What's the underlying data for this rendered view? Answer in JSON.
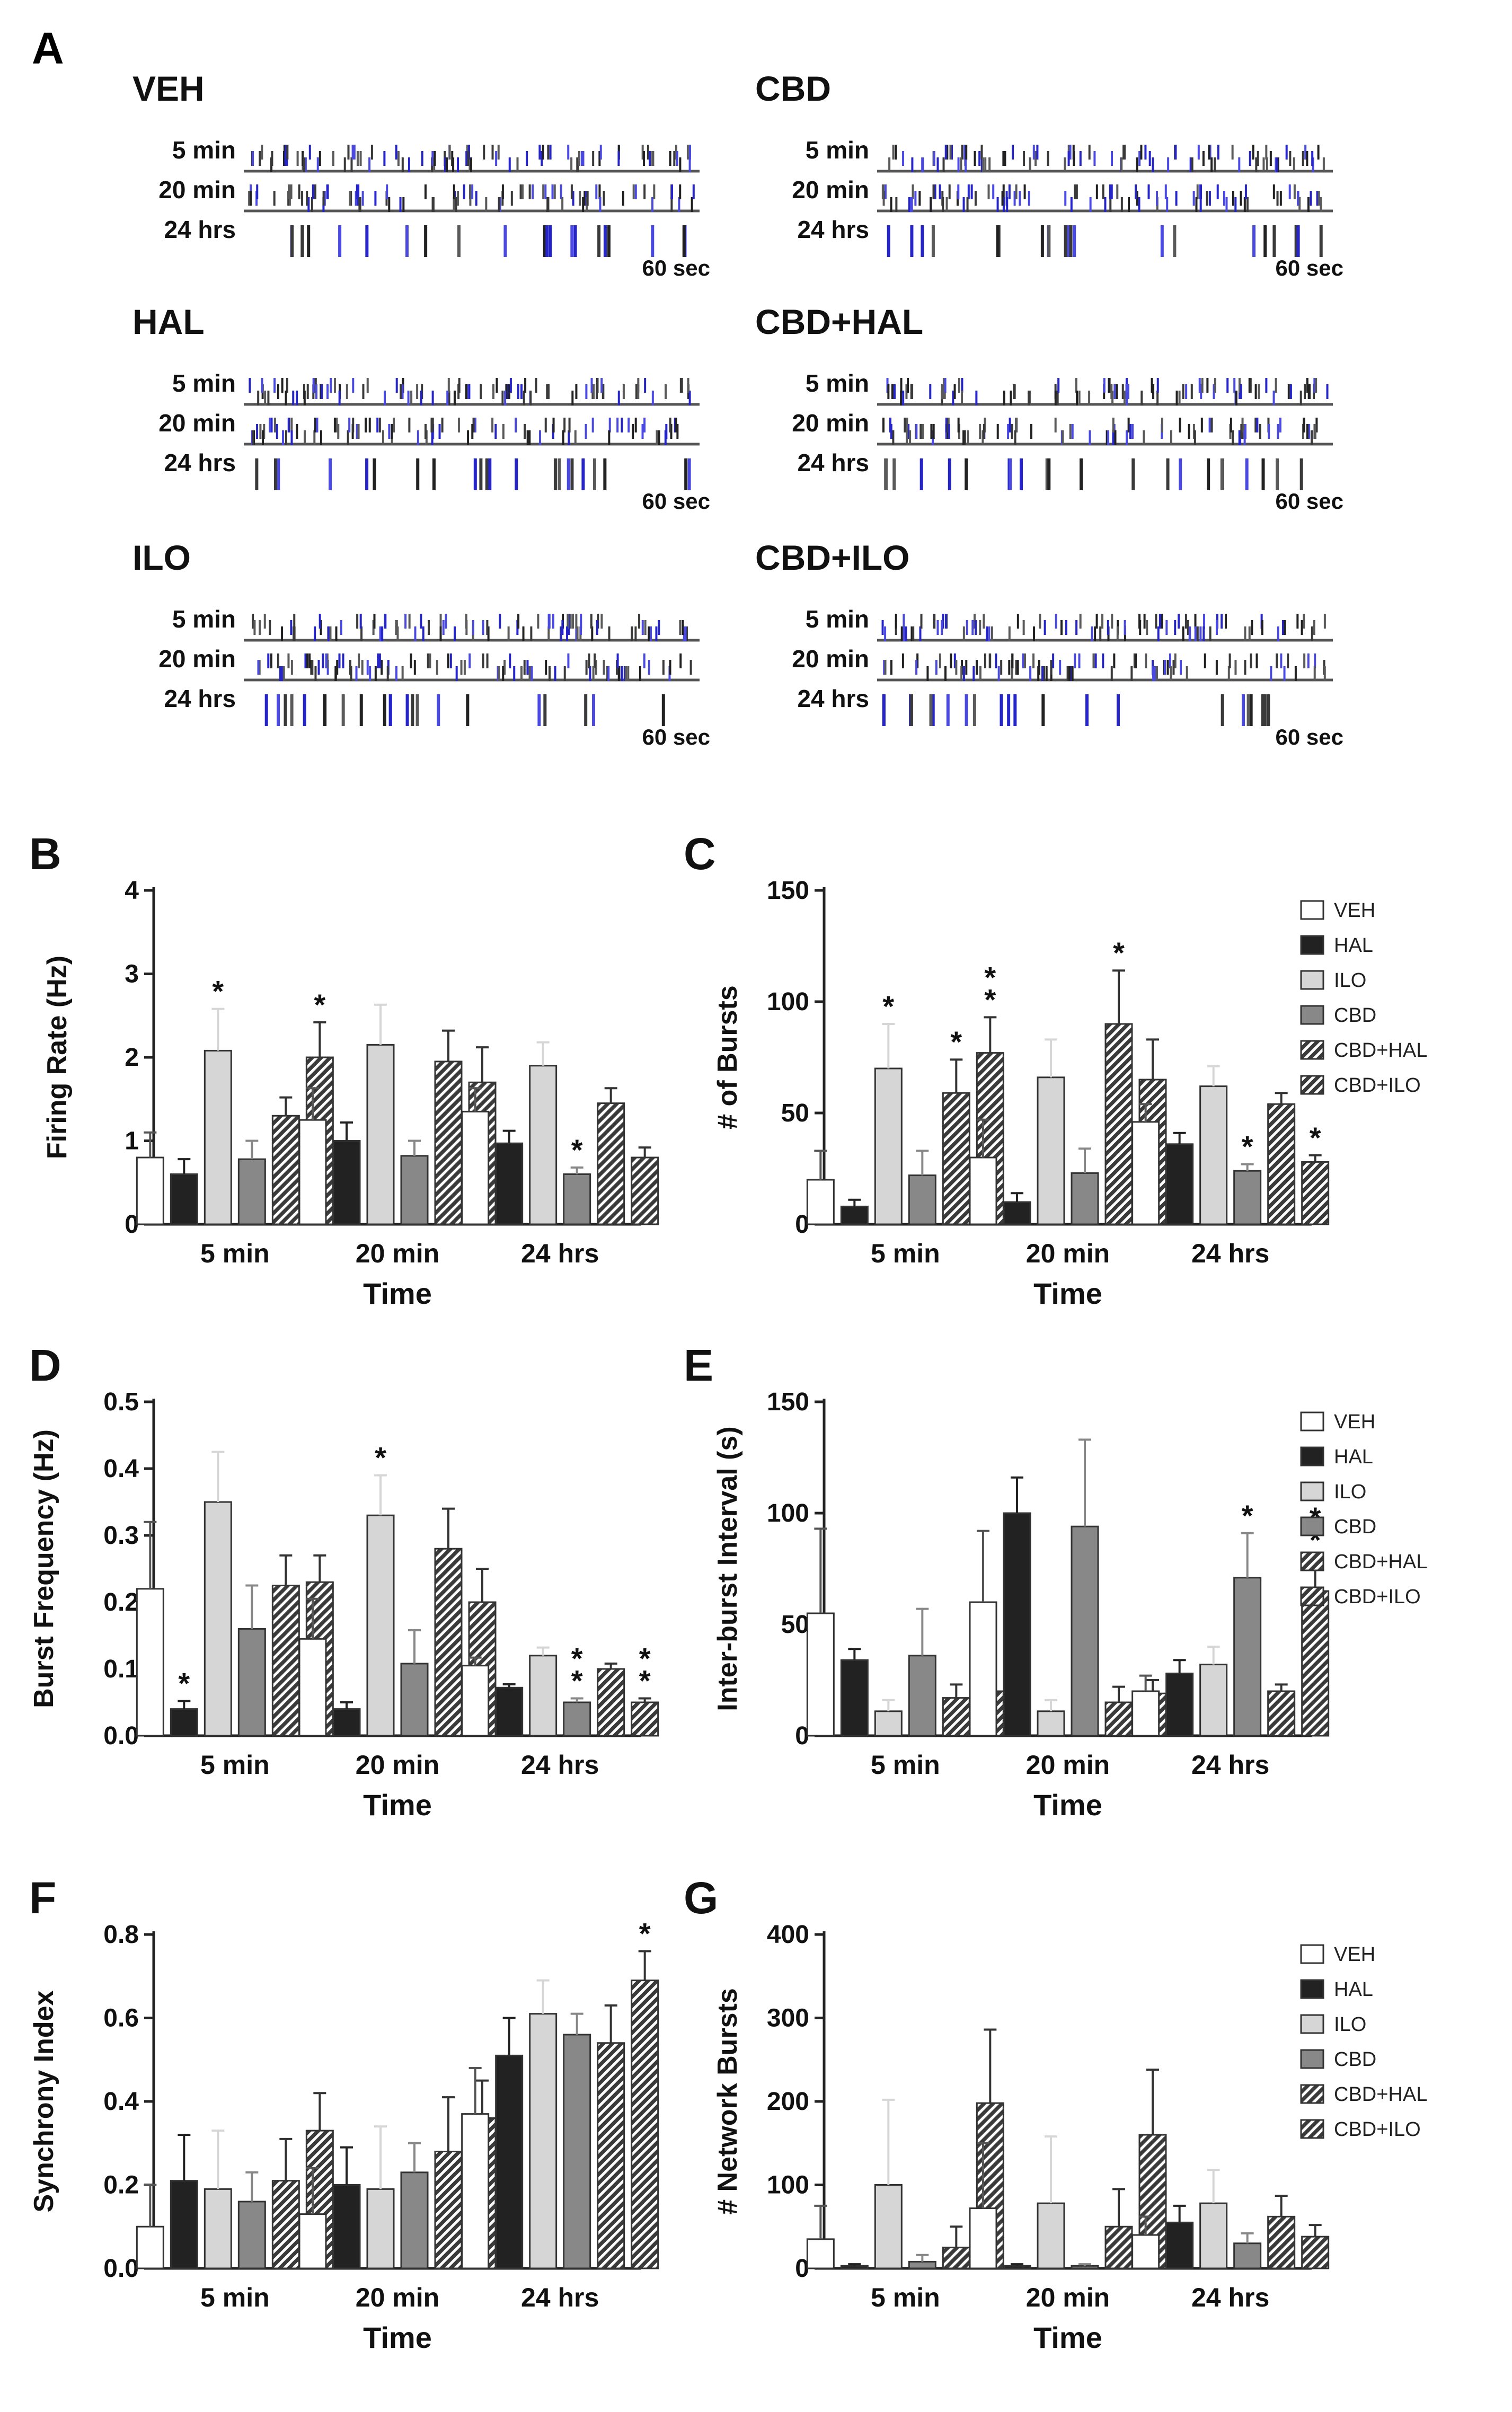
{
  "raster": {
    "panel_label": "A",
    "treatments": [
      {
        "name": "VEH",
        "times": [
          "5 min",
          "20 min",
          "24 hrs"
        ],
        "duration": "60 sec"
      },
      {
        "name": "CBD",
        "times": [
          "5 min",
          "20 min",
          "24 hrs"
        ],
        "duration": "60 sec"
      },
      {
        "name": "HAL",
        "times": [
          "5 min",
          "20 min",
          "24 hrs"
        ],
        "duration": "60 sec"
      },
      {
        "name": "CBD+HAL",
        "times": [
          "5 min",
          "20 min",
          "24 hrs"
        ],
        "duration": "60 sec"
      },
      {
        "name": "ILO",
        "times": [
          "5 min",
          "20 min",
          "24 hrs"
        ],
        "duration": "60 sec"
      },
      {
        "name": "CBD+ILO",
        "times": [
          "5 min",
          "20 min",
          "24 hrs"
        ],
        "duration": "60 sec"
      }
    ]
  },
  "legend": {
    "entries": [
      {
        "name": "VEH",
        "color": "#ffffff",
        "pattern": "none"
      },
      {
        "name": "HAL",
        "color": "#222222",
        "pattern": "none"
      },
      {
        "name": "ILO",
        "color": "#d6d6d6",
        "pattern": "none"
      },
      {
        "name": "CBD",
        "color": "#888888",
        "pattern": "none"
      },
      {
        "name": "CBD+HAL",
        "color": "#444444",
        "pattern": "hatch"
      },
      {
        "name": "CBD+ILO",
        "color": "#444444",
        "pattern": "hatch"
      }
    ]
  },
  "chart_data": [
    {
      "panel": "B",
      "type": "bar",
      "ylabel": "Firing Rate (Hz)",
      "xlabel": "Time",
      "ylim": [
        0,
        4
      ],
      "yticks": [
        "0",
        "1",
        "2",
        "3",
        "4"
      ],
      "categories": [
        "5 min",
        "20 min",
        "24 hrs"
      ],
      "show_legend": false,
      "series": [
        {
          "name": "VEH",
          "values": [
            0.8,
            1.25,
            1.35
          ],
          "errors": [
            0.3,
            0.38,
            0.28
          ]
        },
        {
          "name": "HAL",
          "values": [
            0.6,
            1.0,
            0.97
          ],
          "errors": [
            0.18,
            0.22,
            0.15
          ]
        },
        {
          "name": "ILO",
          "values": [
            2.08,
            2.15,
            1.9
          ],
          "errors": [
            0.5,
            0.48,
            0.28
          ]
        },
        {
          "name": "CBD",
          "values": [
            0.78,
            0.82,
            0.6
          ],
          "errors": [
            0.22,
            0.18,
            0.08
          ]
        },
        {
          "name": "CBD+HAL",
          "values": [
            1.3,
            1.95,
            1.45
          ],
          "errors": [
            0.22,
            0.37,
            0.18
          ]
        },
        {
          "name": "CBD+ILO",
          "values": [
            2.0,
            1.7,
            0.8
          ],
          "errors": [
            0.42,
            0.42,
            0.12
          ]
        }
      ],
      "annotations": [
        {
          "category": "5 min",
          "series": "ILO",
          "text": "*"
        },
        {
          "category": "5 min",
          "series": "CBD+ILO",
          "text": "*"
        },
        {
          "category": "24 hrs",
          "series": "CBD",
          "text": "*"
        }
      ]
    },
    {
      "panel": "C",
      "type": "bar",
      "ylabel": "# of Bursts",
      "xlabel": "Time",
      "ylim": [
        0,
        150
      ],
      "yticks": [
        "0",
        "50",
        "100",
        "150"
      ],
      "categories": [
        "5 min",
        "20 min",
        "24 hrs"
      ],
      "show_legend": true,
      "series": [
        {
          "name": "VEH",
          "values": [
            20,
            30,
            46
          ],
          "errors": [
            13,
            17,
            8
          ]
        },
        {
          "name": "HAL",
          "values": [
            8,
            10,
            36
          ],
          "errors": [
            3,
            4,
            5
          ]
        },
        {
          "name": "ILO",
          "values": [
            70,
            66,
            62
          ],
          "errors": [
            20,
            17,
            9
          ]
        },
        {
          "name": "CBD",
          "values": [
            22,
            23,
            24
          ],
          "errors": [
            11,
            11,
            3
          ]
        },
        {
          "name": "CBD+HAL",
          "values": [
            59,
            90,
            54
          ],
          "errors": [
            15,
            24,
            5
          ]
        },
        {
          "name": "CBD+ILO",
          "values": [
            77,
            65,
            28
          ],
          "errors": [
            16,
            18,
            3
          ]
        }
      ],
      "annotations": [
        {
          "category": "5 min",
          "series": "ILO",
          "text": "*"
        },
        {
          "category": "5 min",
          "series": "CBD+HAL",
          "text": "*"
        },
        {
          "category": "5 min",
          "series": "CBD+ILO",
          "text": "**"
        },
        {
          "category": "20 min",
          "series": "CBD+HAL",
          "text": "*"
        },
        {
          "category": "24 hrs",
          "series": "CBD",
          "text": "*"
        },
        {
          "category": "24 hrs",
          "series": "CBD+ILO",
          "text": "*"
        }
      ]
    },
    {
      "panel": "D",
      "type": "bar",
      "ylabel": "Burst Frequency (Hz)",
      "xlabel": "Time",
      "ylim": [
        0,
        0.5
      ],
      "yticks": [
        "0.0",
        "0.1",
        "0.2",
        "0.3",
        "0.4",
        "0.5"
      ],
      "categories": [
        "5 min",
        "20 min",
        "24 hrs"
      ],
      "show_legend": false,
      "series": [
        {
          "name": "VEH",
          "values": [
            0.22,
            0.145,
            0.105
          ],
          "errors": [
            0.1,
            0.06,
            0.012
          ]
        },
        {
          "name": "HAL",
          "values": [
            0.04,
            0.04,
            0.072
          ],
          "errors": [
            0.012,
            0.01,
            0.005
          ]
        },
        {
          "name": "ILO",
          "values": [
            0.35,
            0.33,
            0.12
          ],
          "errors": [
            0.075,
            0.06,
            0.012
          ]
        },
        {
          "name": "CBD",
          "values": [
            0.16,
            0.108,
            0.05
          ],
          "errors": [
            0.065,
            0.05,
            0.006
          ]
        },
        {
          "name": "CBD+HAL",
          "values": [
            0.225,
            0.28,
            0.1
          ],
          "errors": [
            0.045,
            0.06,
            0.008
          ]
        },
        {
          "name": "CBD+ILO",
          "values": [
            0.23,
            0.2,
            0.05
          ],
          "errors": [
            0.04,
            0.05,
            0.006
          ]
        }
      ],
      "annotations": [
        {
          "category": "5 min",
          "series": "HAL",
          "text": "*"
        },
        {
          "category": "20 min",
          "series": "ILO",
          "text": "*"
        },
        {
          "category": "24 hrs",
          "series": "CBD",
          "text": "**"
        },
        {
          "category": "24 hrs",
          "series": "CBD+ILO",
          "text": "**"
        }
      ]
    },
    {
      "panel": "E",
      "type": "bar",
      "ylabel": "Inter-burst Interval (s)",
      "xlabel": "Time",
      "ylim": [
        0,
        150
      ],
      "yticks": [
        "0",
        "50",
        "100",
        "150"
      ],
      "categories": [
        "5 min",
        "20 min",
        "24 hrs"
      ],
      "show_legend": true,
      "series": [
        {
          "name": "VEH",
          "values": [
            55,
            60,
            20
          ],
          "errors": [
            38,
            32,
            7
          ]
        },
        {
          "name": "HAL",
          "values": [
            34,
            100,
            28
          ],
          "errors": [
            5,
            16,
            6
          ]
        },
        {
          "name": "ILO",
          "values": [
            11,
            11,
            32
          ],
          "errors": [
            5,
            5,
            8
          ]
        },
        {
          "name": "CBD",
          "values": [
            36,
            94,
            71
          ],
          "errors": [
            21,
            39,
            20
          ]
        },
        {
          "name": "CBD+HAL",
          "values": [
            17,
            15,
            20
          ],
          "errors": [
            6,
            7,
            3
          ]
        },
        {
          "name": "CBD+ILO",
          "values": [
            20,
            19,
            65
          ],
          "errors": [
            14,
            6,
            15
          ]
        }
      ],
      "annotations": [
        {
          "category": "24 hrs",
          "series": "CBD",
          "text": "*"
        },
        {
          "category": "24 hrs",
          "series": "CBD+ILO",
          "text": "**"
        }
      ]
    },
    {
      "panel": "F",
      "type": "bar",
      "ylabel": "Synchrony Index",
      "xlabel": "Time",
      "ylim": [
        0,
        0.8
      ],
      "yticks": [
        "0.0",
        "0.2",
        "0.4",
        "0.6",
        "0.8"
      ],
      "categories": [
        "5 min",
        "20 min",
        "24 hrs"
      ],
      "show_legend": false,
      "series": [
        {
          "name": "VEH",
          "values": [
            0.1,
            0.13,
            0.37
          ],
          "errors": [
            0.1,
            0.11,
            0.11
          ]
        },
        {
          "name": "HAL",
          "values": [
            0.21,
            0.2,
            0.51
          ],
          "errors": [
            0.11,
            0.09,
            0.09
          ]
        },
        {
          "name": "ILO",
          "values": [
            0.19,
            0.19,
            0.61
          ],
          "errors": [
            0.14,
            0.15,
            0.08
          ]
        },
        {
          "name": "CBD",
          "values": [
            0.16,
            0.23,
            0.56
          ],
          "errors": [
            0.07,
            0.07,
            0.05
          ]
        },
        {
          "name": "CBD+HAL",
          "values": [
            0.21,
            0.28,
            0.54
          ],
          "errors": [
            0.1,
            0.13,
            0.09
          ]
        },
        {
          "name": "CBD+ILO",
          "values": [
            0.33,
            0.36,
            0.69
          ],
          "errors": [
            0.09,
            0.09,
            0.07
          ]
        }
      ],
      "annotations": [
        {
          "category": "24 hrs",
          "series": "CBD+ILO",
          "text": "*"
        }
      ]
    },
    {
      "panel": "G",
      "type": "bar",
      "ylabel": "# Network Bursts",
      "xlabel": "Time",
      "ylim": [
        0,
        400
      ],
      "yticks": [
        "0",
        "100",
        "200",
        "300",
        "400"
      ],
      "categories": [
        "5 min",
        "20 min",
        "24 hrs"
      ],
      "show_legend": true,
      "series": [
        {
          "name": "VEH",
          "values": [
            35,
            72,
            40
          ],
          "errors": [
            40,
            78,
            22
          ]
        },
        {
          "name": "HAL",
          "values": [
            3,
            3,
            55
          ],
          "errors": [
            2,
            2,
            20
          ]
        },
        {
          "name": "ILO",
          "values": [
            100,
            78,
            78
          ],
          "errors": [
            102,
            80,
            40
          ]
        },
        {
          "name": "CBD",
          "values": [
            8,
            3,
            30
          ],
          "errors": [
            8,
            2,
            12
          ]
        },
        {
          "name": "CBD+HAL",
          "values": [
            25,
            50,
            62
          ],
          "errors": [
            25,
            45,
            25
          ]
        },
        {
          "name": "CBD+ILO",
          "values": [
            198,
            160,
            38
          ],
          "errors": [
            88,
            78,
            14
          ]
        }
      ],
      "annotations": []
    }
  ]
}
